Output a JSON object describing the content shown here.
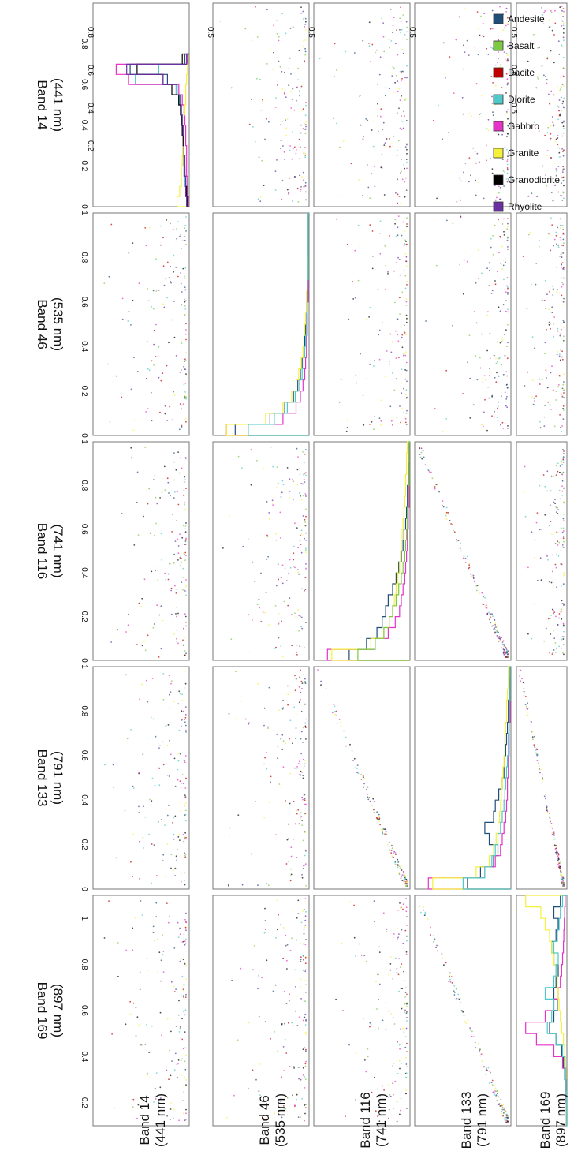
{
  "chart_data": {
    "type": "scatter",
    "description": "Scatterplot matrix of normalized reflectance for five spectral bands, coloured by rock type; diagonal panels are per-class histograms.",
    "bands": [
      {
        "name": "Band 14",
        "wavelength": "(441 nm)"
      },
      {
        "name": "Band 46",
        "wavelength": "(535 nm)"
      },
      {
        "name": "Band 116",
        "wavelength": "(741 nm)"
      },
      {
        "name": "Band 133",
        "wavelength": "(791 nm)"
      },
      {
        "name": "Band 169",
        "wavelength": "(897 nm)"
      }
    ],
    "legend": [
      {
        "name": "Andesite",
        "color": "#1f4e79"
      },
      {
        "name": "Basalt",
        "color": "#7cc944"
      },
      {
        "name": "Dacite",
        "color": "#c00000"
      },
      {
        "name": "Diorite",
        "color": "#4fc9c9"
      },
      {
        "name": "Gabbro",
        "color": "#e633c8"
      },
      {
        "name": "Granite",
        "color": "#f5f03a"
      },
      {
        "name": "Granodiorite",
        "color": "#000000"
      },
      {
        "name": "Rhyolite",
        "color": "#6a2fa0"
      }
    ],
    "x_ticks": {
      "Band 14": [
        "0",
        "0.2",
        "0.4",
        "0.6",
        "0.8"
      ],
      "Band 46": [
        "0",
        "0.2",
        "0.4",
        "0.6",
        "0.8",
        "1"
      ],
      "Band 116": [
        "0",
        "0.2",
        "0.4",
        "0.6",
        "0.8",
        "1"
      ],
      "Band 133": [
        "0",
        "0.2",
        "0.4",
        "0.6",
        "0.8",
        "1"
      ],
      "Band 169": [
        "0.2",
        "0.4",
        "0.6",
        "0.8",
        "1"
      ]
    },
    "y_ticks": {
      "Band 14": [
        "0.8",
        "0.6",
        "0.4",
        "0.2"
      ],
      "Band 46": [
        "0.5"
      ],
      "Band 116": [
        "0.5"
      ],
      "Band 133": [
        "0.5"
      ],
      "Band 169": [
        "0.5",
        "0.5",
        "0.5"
      ]
    },
    "xlim": [
      0,
      1
    ],
    "histograms": {
      "Band 14": {
        "bins": [
          0.05,
          0.1,
          0.15,
          0.2,
          0.25,
          0.3,
          0.35,
          0.4,
          0.45,
          0.5,
          0.55,
          0.6,
          0.65,
          0.7,
          0.75
        ],
        "series": [
          {
            "name": "Andesite",
            "values": [
              0.02,
              0.04,
              0.05,
              0.06,
              0.06,
              0.07,
              0.07,
              0.08,
              0.09,
              0.1,
              0.12,
              0.15,
              0.25,
              0.68,
              0.05
            ]
          },
          {
            "name": "Diorite",
            "values": [
              0.03,
              0.04,
              0.05,
              0.05,
              0.06,
              0.06,
              0.07,
              0.07,
              0.08,
              0.09,
              0.11,
              0.15,
              0.62,
              0.35,
              0.02
            ]
          },
          {
            "name": "Gabbro",
            "values": [
              0.01,
              0.02,
              0.02,
              0.03,
              0.03,
              0.03,
              0.04,
              0.04,
              0.05,
              0.06,
              0.08,
              0.12,
              0.7,
              0.84,
              0.02
            ]
          },
          {
            "name": "Granite",
            "values": [
              0.14,
              0.11,
              0.09,
              0.09,
              0.08,
              0.07,
              0.07,
              0.06,
              0.06,
              0.05,
              0.04,
              0.04,
              0.03,
              0.02,
              0.01
            ]
          },
          {
            "name": "Granodiorite",
            "values": [
              0.02,
              0.03,
              0.04,
              0.05,
              0.06,
              0.06,
              0.07,
              0.08,
              0.09,
              0.1,
              0.12,
              0.2,
              0.3,
              0.6,
              0.08
            ]
          },
          {
            "name": "Rhyolite",
            "values": [
              0.03,
              0.04,
              0.04,
              0.05,
              0.05,
              0.06,
              0.06,
              0.07,
              0.08,
              0.09,
              0.1,
              0.14,
              0.3,
              0.72,
              0.03
            ]
          }
        ]
      },
      "Band 46": {
        "bins": [
          0.05,
          0.1,
          0.15,
          0.2,
          0.25,
          0.3,
          0.35,
          0.4,
          0.45,
          0.5,
          0.55,
          0.6,
          0.65,
          0.7,
          0.75,
          0.8,
          0.85,
          0.9,
          0.95,
          1.0
        ],
        "series": [
          {
            "name": "Andesite",
            "values": [
              0.85,
              0.45,
              0.28,
              0.18,
              0.13,
              0.1,
              0.08,
              0.06,
              0.05,
              0.04,
              0.03,
              0.03,
              0.02,
              0.02,
              0.02,
              0.01,
              0.01,
              0.01,
              0.01,
              0.01
            ]
          },
          {
            "name": "Gabbro",
            "values": [
              0.95,
              0.3,
              0.15,
              0.1,
              0.07,
              0.05,
              0.04,
              0.03,
              0.03,
              0.02,
              0.02,
              0.02,
              0.01,
              0.01,
              0.01,
              0.01,
              0.01,
              0.01,
              0.01,
              0.01
            ]
          },
          {
            "name": "Granite",
            "values": [
              0.95,
              0.5,
              0.3,
              0.2,
              0.15,
              0.12,
              0.09,
              0.07,
              0.06,
              0.05,
              0.04,
              0.03,
              0.03,
              0.02,
              0.02,
              0.02,
              0.01,
              0.01,
              0.01,
              0.01
            ]
          },
          {
            "name": "Diorite",
            "values": [
              0.7,
              0.4,
              0.25,
              0.16,
              0.11,
              0.08,
              0.06,
              0.05,
              0.04,
              0.03,
              0.03,
              0.02,
              0.02,
              0.02,
              0.01,
              0.01,
              0.01,
              0.01,
              0.01,
              0.01
            ]
          }
        ]
      },
      "Band 116": {
        "bins": [
          0.05,
          0.1,
          0.15,
          0.2,
          0.25,
          0.3,
          0.35,
          0.4,
          0.45,
          0.5,
          0.55,
          0.6,
          0.65,
          0.7,
          0.75,
          0.8,
          0.85,
          0.9,
          0.95,
          1.0
        ],
        "series": [
          {
            "name": "Andesite",
            "values": [
              0.7,
              0.5,
              0.38,
              0.32,
              0.28,
              0.25,
              0.2,
              0.16,
              0.13,
              0.1,
              0.08,
              0.07,
              0.05,
              0.04,
              0.03,
              0.03,
              0.02,
              0.02,
              0.01,
              0.01
            ]
          },
          {
            "name": "Gabbro",
            "values": [
              0.95,
              0.4,
              0.25,
              0.17,
              0.12,
              0.1,
              0.08,
              0.06,
              0.05,
              0.04,
              0.03,
              0.03,
              0.02,
              0.02,
              0.01,
              0.01,
              0.01,
              0.01,
              0.01,
              0.01
            ]
          },
          {
            "name": "Granite",
            "values": [
              0.9,
              0.45,
              0.3,
              0.24,
              0.2,
              0.18,
              0.16,
              0.14,
              0.12,
              0.11,
              0.1,
              0.09,
              0.08,
              0.07,
              0.06,
              0.05,
              0.05,
              0.04,
              0.04,
              0.03
            ]
          },
          {
            "name": "Basalt",
            "values": [
              0.6,
              0.4,
              0.3,
              0.24,
              0.2,
              0.16,
              0.13,
              0.1,
              0.08,
              0.06,
              0.05,
              0.04,
              0.03,
              0.03,
              0.02,
              0.02,
              0.01,
              0.01,
              0.01,
              0.01
            ]
          }
        ]
      },
      "Band 133": {
        "bins": [
          0.05,
          0.1,
          0.15,
          0.2,
          0.25,
          0.3,
          0.35,
          0.4,
          0.45,
          0.5,
          0.55,
          0.6,
          0.65,
          0.7,
          0.75,
          0.8,
          0.85,
          0.9,
          0.95,
          1.0
        ],
        "series": [
          {
            "name": "Andesite",
            "values": [
              0.5,
              0.35,
              0.2,
              0.15,
              0.25,
              0.3,
              0.2,
              0.18,
              0.14,
              0.1,
              0.08,
              0.07,
              0.06,
              0.05,
              0.04,
              0.03,
              0.03,
              0.02,
              0.02,
              0.01
            ]
          },
          {
            "name": "Gabbro",
            "values": [
              0.95,
              0.3,
              0.18,
              0.12,
              0.1,
              0.08,
              0.06,
              0.05,
              0.04,
              0.04,
              0.03,
              0.03,
              0.02,
              0.02,
              0.02,
              0.01,
              0.01,
              0.01,
              0.01,
              0.01
            ]
          },
          {
            "name": "Granite",
            "values": [
              0.9,
              0.4,
              0.25,
              0.2,
              0.17,
              0.15,
              0.13,
              0.12,
              0.11,
              0.1,
              0.09,
              0.08,
              0.07,
              0.07,
              0.06,
              0.05,
              0.05,
              0.04,
              0.03,
              0.03
            ]
          },
          {
            "name": "Diorite",
            "values": [
              0.55,
              0.3,
              0.22,
              0.18,
              0.15,
              0.12,
              0.1,
              0.08,
              0.07,
              0.06,
              0.05,
              0.04,
              0.03,
              0.03,
              0.02,
              0.02,
              0.02,
              0.01,
              0.01,
              0.01
            ]
          }
        ]
      },
      "Band 169": {
        "bins": [
          0.1,
          0.15,
          0.2,
          0.25,
          0.3,
          0.35,
          0.4,
          0.45,
          0.5,
          0.55,
          0.6,
          0.65,
          0.7,
          0.75,
          0.8,
          0.85,
          0.9,
          0.95,
          1.0
        ],
        "series": [
          {
            "name": "Andesite",
            "values": [
              0.01,
              0.02,
              0.03,
              0.05,
              0.08,
              0.12,
              0.25,
              0.4,
              0.3,
              0.22,
              0.3,
              0.25,
              0.2,
              0.3,
              0.35,
              0.25,
              0.2,
              0.3,
              0.15
            ]
          },
          {
            "name": "Gabbro",
            "values": [
              0.01,
              0.01,
              0.02,
              0.04,
              0.1,
              0.3,
              0.7,
              0.95,
              0.5,
              0.3,
              0.2,
              0.15,
              0.12,
              0.1,
              0.08,
              0.07,
              0.06,
              0.05,
              0.04
            ]
          },
          {
            "name": "Granite",
            "values": [
              0.01,
              0.01,
              0.02,
              0.02,
              0.03,
              0.05,
              0.08,
              0.12,
              0.15,
              0.18,
              0.2,
              0.22,
              0.25,
              0.3,
              0.35,
              0.4,
              0.5,
              0.6,
              0.95
            ]
          },
          {
            "name": "Diorite",
            "values": [
              0.01,
              0.01,
              0.02,
              0.03,
              0.05,
              0.1,
              0.25,
              0.45,
              0.35,
              0.3,
              0.5,
              0.3,
              0.25,
              0.2,
              0.3,
              0.22,
              0.18,
              0.15,
              0.1
            ]
          }
        ]
      }
    }
  }
}
